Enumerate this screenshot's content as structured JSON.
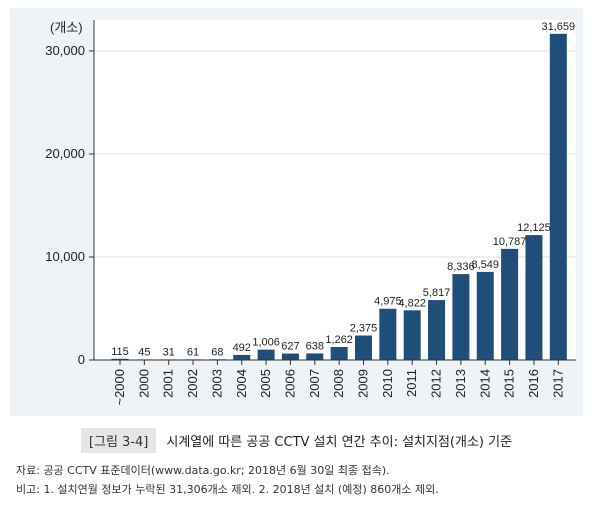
{
  "caption": {
    "tag": "[그림 3-4]",
    "text": "시계열에 따른 공공 CCTV 설치 연간 추이: 설치지점(개소) 기준"
  },
  "notes": {
    "source": "자료: 공공 CCTV 표준데이터(www.data.go.kr; 2018년 6월 30일 최종 접속).",
    "remark": "비고: 1. 설치연월 정보가 누락된 31,306개소 제외. 2. 2018년 설치 (예정) 860개소 제외."
  },
  "chart_data": {
    "type": "bar",
    "unit_label": "(개소)",
    "categories": [
      "~2000",
      "2000",
      "2001",
      "2002",
      "2003",
      "2004",
      "2005",
      "2006",
      "2007",
      "2008",
      "2009",
      "2010",
      "2011",
      "2012",
      "2013",
      "2014",
      "2015",
      "2016",
      "2017"
    ],
    "values": [
      115,
      45,
      31,
      61,
      68,
      492,
      1006,
      627,
      638,
      1262,
      2375,
      4975,
      4822,
      5817,
      8336,
      8549,
      10787,
      12125,
      31659
    ],
    "value_labels": [
      "115",
      "45",
      "31",
      "61",
      "68",
      "492",
      "1,006",
      "627",
      "638",
      "1,262",
      "2,375",
      "4,975",
      "4,822",
      "5,817",
      "8,336",
      "8,549",
      "10,787",
      "12,125",
      "31,659"
    ],
    "yticks": [
      0,
      10000,
      20000,
      30000
    ],
    "ytick_labels": [
      "0",
      "10,000",
      "20,000",
      "30,000"
    ],
    "ylim": [
      0,
      33000
    ],
    "bar_color": "#1f4e79",
    "grid": true
  }
}
